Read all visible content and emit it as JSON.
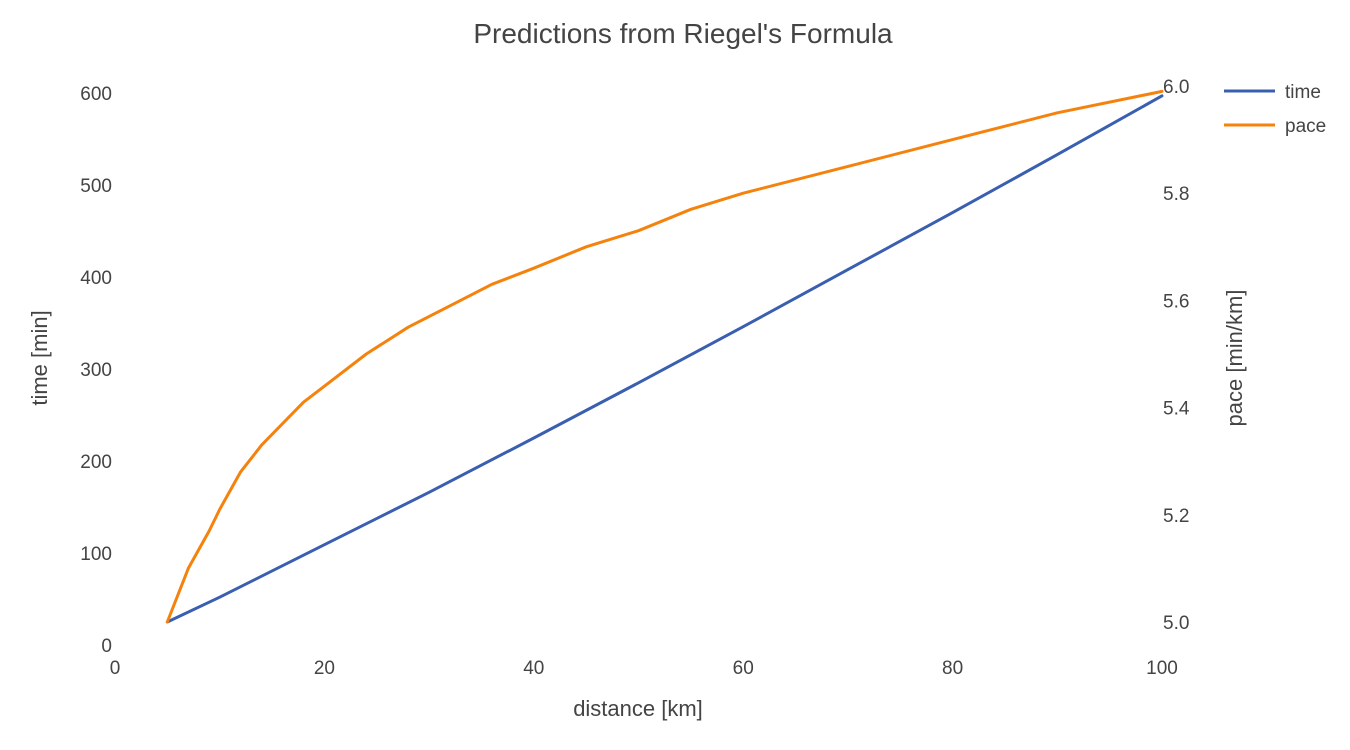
{
  "chart_data": {
    "type": "line",
    "title": "Predictions from Riegel's Formula",
    "xlabel": "distance [km]",
    "ylabel": "time [min]",
    "y2label": "pace [min/km]",
    "xlim": [
      0,
      100
    ],
    "ylim": [
      0,
      600
    ],
    "y2lim": [
      5.0,
      6.0
    ],
    "x_ticks": [
      "0",
      "20",
      "40",
      "60",
      "80",
      "100"
    ],
    "y_ticks": [
      "0",
      "100",
      "200",
      "300",
      "400",
      "500",
      "600"
    ],
    "y2_ticks": [
      "5.0",
      "5.2",
      "5.4",
      "5.6",
      "5.8",
      "6.0"
    ],
    "grid": false,
    "legend_position": "top-right",
    "series": [
      {
        "name": "time",
        "axis": "left",
        "color": "#3a5fb1",
        "x": [
          5,
          10,
          20,
          30,
          40,
          50,
          60,
          70,
          80,
          90,
          100
        ],
        "y": [
          25,
          52,
          109,
          166,
          225,
          285,
          346,
          408,
          470,
          533,
          597
        ]
      },
      {
        "name": "pace",
        "axis": "right",
        "color": "#f5820d",
        "x": [
          5,
          7,
          9,
          10,
          12,
          14,
          16,
          18,
          20,
          24,
          28,
          32,
          36,
          40,
          45,
          50,
          55,
          60,
          70,
          80,
          90,
          100
        ],
        "y": [
          5.0,
          5.1,
          5.17,
          5.21,
          5.28,
          5.33,
          5.37,
          5.41,
          5.44,
          5.5,
          5.55,
          5.59,
          5.63,
          5.66,
          5.7,
          5.73,
          5.77,
          5.8,
          5.85,
          5.9,
          5.95,
          5.99
        ]
      }
    ]
  }
}
